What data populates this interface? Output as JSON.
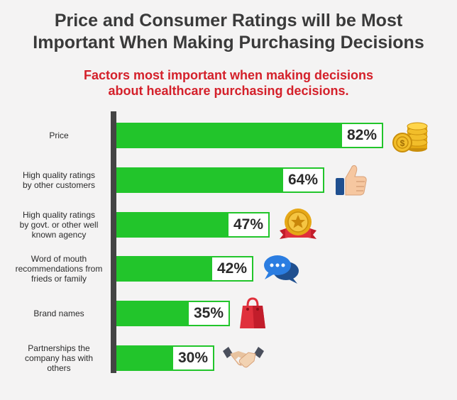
{
  "title": [
    "Price and Consumer Ratings will be Most",
    "Important When Making Purchasing Decisions"
  ],
  "subtitle": [
    "Factors most important when making decisions",
    "about healthcare purchasing decisions."
  ],
  "chart_data": {
    "type": "bar",
    "orientation": "horizontal",
    "title": "Price and Consumer Ratings will be Most Important When Making Purchasing Decisions",
    "subtitle": "Factors most important when making decisions about healthcare purchasing decisions.",
    "categories": [
      [
        "Price"
      ],
      [
        "High quality ratings",
        "by other customers"
      ],
      [
        "High quality ratings",
        "by govt. or other well",
        "known agency"
      ],
      [
        "Word of mouth",
        "recommendations from",
        "frieds or family"
      ],
      [
        "Brand names"
      ],
      [
        "Partnerships the",
        "company has with",
        "others"
      ]
    ],
    "values": [
      82,
      64,
      47,
      42,
      35,
      30
    ],
    "value_labels": [
      "82%",
      "64%",
      "47%",
      "42%",
      "35%",
      "30%"
    ],
    "xlim": [
      0,
      100
    ],
    "grid": false,
    "bar_color": "#22c52b",
    "icons": [
      "coins-icon",
      "thumbs-up-icon",
      "award-badge-icon",
      "speech-bubbles-icon",
      "shopping-bag-icon",
      "handshake-icon"
    ]
  }
}
